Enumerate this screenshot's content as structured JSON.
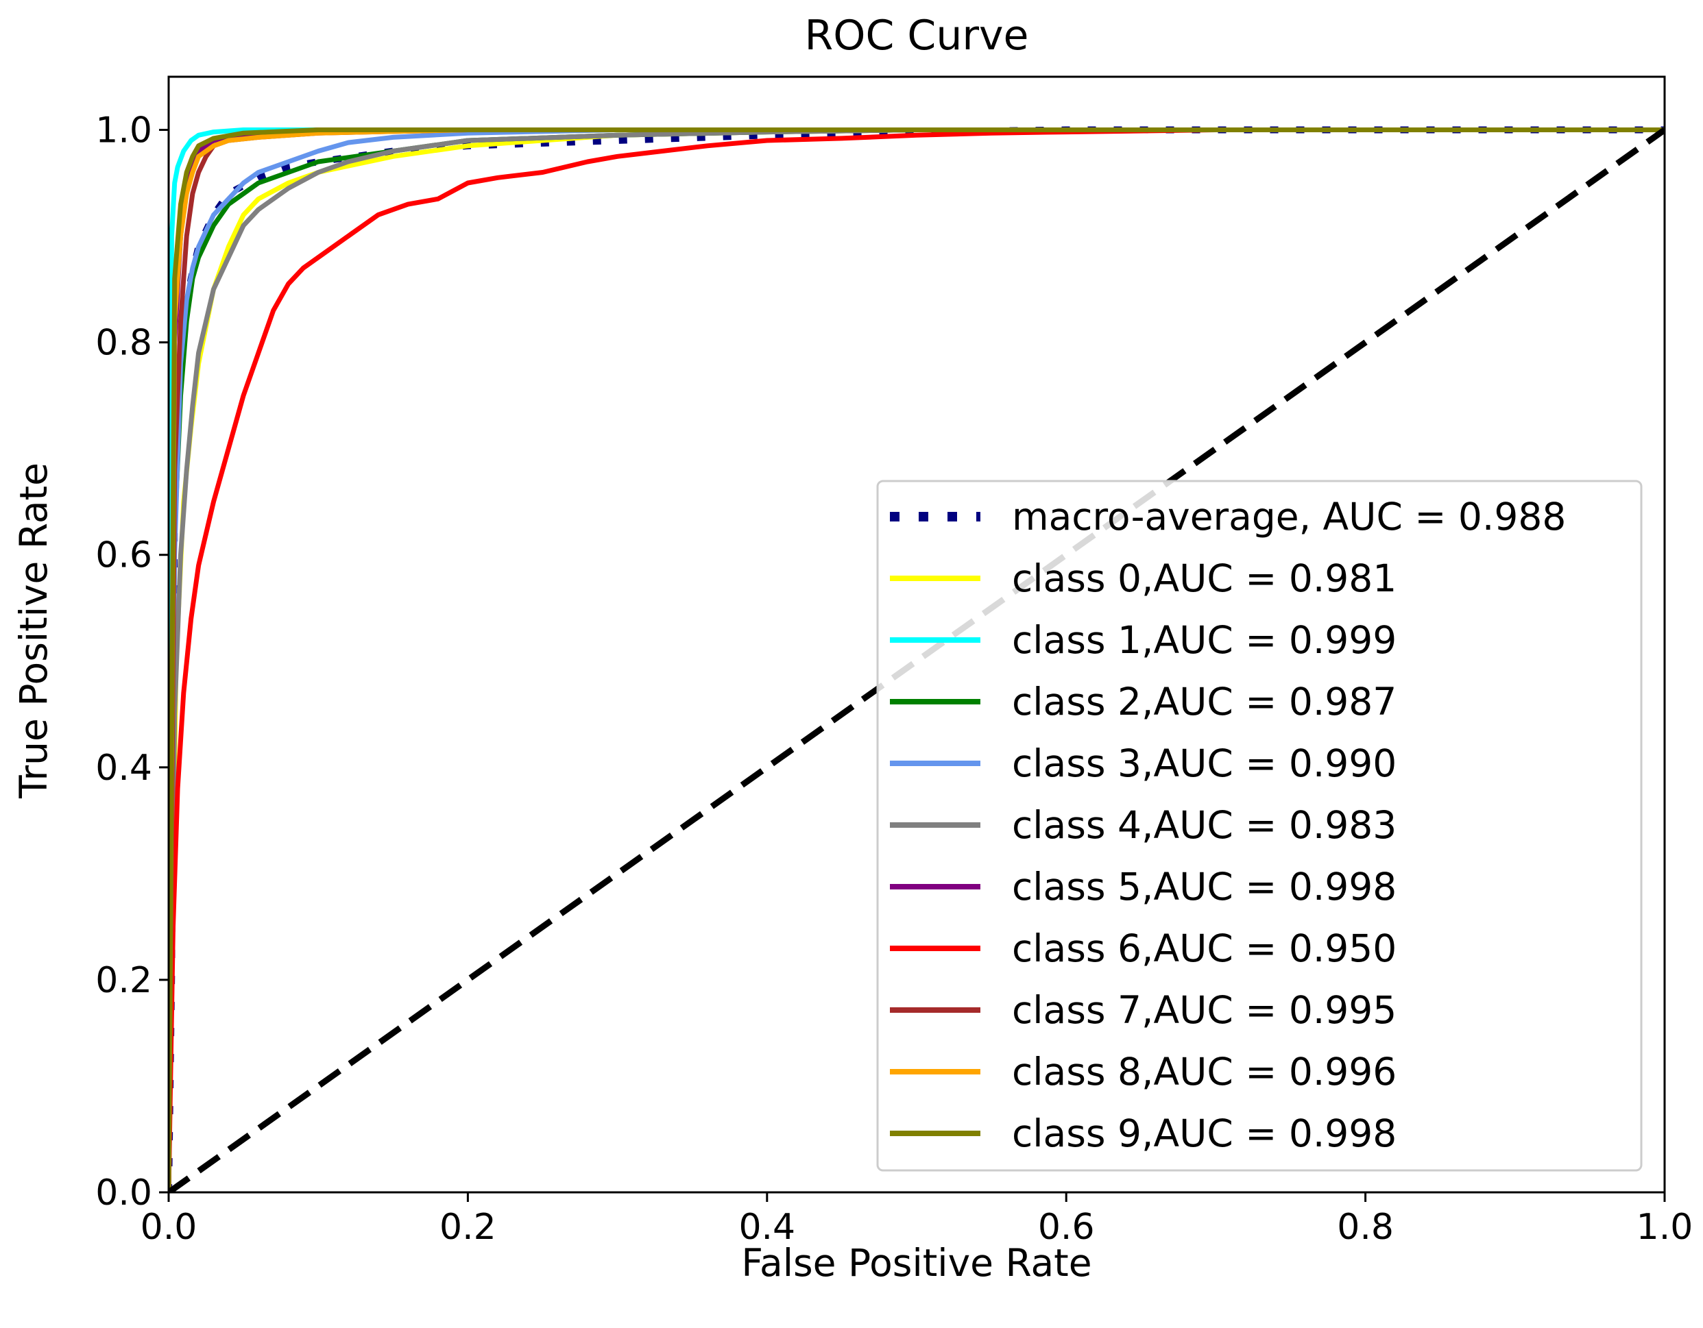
{
  "chart_data": {
    "type": "line",
    "title": "ROC Curve",
    "xlabel": "False Positive Rate",
    "ylabel": "True Positive Rate",
    "xlim": [
      0.0,
      1.0
    ],
    "ylim": [
      0.0,
      1.05
    ],
    "xticks": [
      "0.0",
      "0.2",
      "0.4",
      "0.6",
      "0.8",
      "1.0"
    ],
    "yticks": [
      "0.0",
      "0.2",
      "0.4",
      "0.6",
      "0.8",
      "1.0"
    ],
    "grid": false,
    "legend_position": "lower-right",
    "diagonal": {
      "x": [
        0,
        1
      ],
      "y": [
        0,
        1
      ],
      "color": "#000000",
      "style": "dashed"
    },
    "series": [
      {
        "name": "macro-average, AUC = 0.988",
        "color": "#000080",
        "style": "dotted",
        "x": [
          0,
          0.002,
          0.004,
          0.006,
          0.01,
          0.015,
          0.02,
          0.03,
          0.04,
          0.06,
          0.08,
          0.1,
          0.15,
          0.2,
          0.3,
          0.4,
          0.5,
          0.6,
          0.7,
          0.8,
          0.9,
          1.0
        ],
        "y": [
          0,
          0.21,
          0.67,
          0.75,
          0.82,
          0.86,
          0.89,
          0.92,
          0.94,
          0.955,
          0.965,
          0.97,
          0.98,
          0.985,
          0.99,
          0.995,
          0.998,
          1.0,
          1.0,
          1.0,
          1.0,
          1.0
        ]
      },
      {
        "name": "class 0,AUC = 0.981",
        "color": "#ffff00",
        "style": "solid",
        "x": [
          0,
          0.005,
          0.01,
          0.015,
          0.02,
          0.03,
          0.04,
          0.05,
          0.06,
          0.08,
          0.1,
          0.15,
          0.2,
          0.25,
          0.3,
          0.4,
          0.5,
          0.6,
          1.0
        ],
        "y": [
          0,
          0.5,
          0.65,
          0.72,
          0.78,
          0.85,
          0.89,
          0.92,
          0.935,
          0.95,
          0.96,
          0.975,
          0.985,
          0.99,
          0.995,
          0.998,
          1.0,
          1.0,
          1.0
        ]
      },
      {
        "name": "class 1,AUC = 0.999",
        "color": "#00ffff",
        "style": "solid",
        "x": [
          0,
          0.002,
          0.004,
          0.006,
          0.01,
          0.015,
          0.02,
          0.03,
          0.05,
          0.1,
          0.3,
          1.0
        ],
        "y": [
          0,
          0.9,
          0.95,
          0.965,
          0.98,
          0.99,
          0.995,
          0.998,
          1.0,
          1.0,
          1.0,
          1.0
        ]
      },
      {
        "name": "class 2,AUC = 0.987",
        "color": "#008000",
        "style": "solid",
        "x": [
          0,
          0.004,
          0.008,
          0.012,
          0.016,
          0.02,
          0.03,
          0.04,
          0.05,
          0.06,
          0.08,
          0.1,
          0.15,
          0.2,
          0.3,
          0.4,
          0.5,
          1.0
        ],
        "y": [
          0,
          0.62,
          0.75,
          0.82,
          0.86,
          0.88,
          0.91,
          0.93,
          0.94,
          0.95,
          0.96,
          0.97,
          0.98,
          0.99,
          0.995,
          0.998,
          1.0,
          1.0
        ]
      },
      {
        "name": "class 3,AUC = 0.990",
        "color": "#6495ed",
        "style": "solid",
        "x": [
          0,
          0.004,
          0.008,
          0.012,
          0.016,
          0.02,
          0.03,
          0.04,
          0.05,
          0.06,
          0.08,
          0.1,
          0.12,
          0.15,
          0.2,
          0.3,
          0.4,
          1.0
        ],
        "y": [
          0,
          0.6,
          0.78,
          0.84,
          0.87,
          0.89,
          0.92,
          0.935,
          0.95,
          0.96,
          0.97,
          0.98,
          0.988,
          0.993,
          0.997,
          1.0,
          1.0,
          1.0
        ]
      },
      {
        "name": "class 4,AUC = 0.983",
        "color": "#808080",
        "style": "solid",
        "x": [
          0,
          0.004,
          0.008,
          0.012,
          0.016,
          0.02,
          0.03,
          0.04,
          0.05,
          0.06,
          0.08,
          0.1,
          0.12,
          0.15,
          0.2,
          0.3,
          0.4,
          0.5,
          1.0
        ],
        "y": [
          0,
          0.45,
          0.6,
          0.68,
          0.74,
          0.79,
          0.85,
          0.88,
          0.91,
          0.925,
          0.945,
          0.96,
          0.97,
          0.98,
          0.99,
          0.995,
          0.998,
          1.0,
          1.0
        ]
      },
      {
        "name": "class 5,AUC = 0.998",
        "color": "#800080",
        "style": "solid",
        "x": [
          0,
          0.004,
          0.008,
          0.012,
          0.016,
          0.02,
          0.03,
          0.05,
          0.1,
          0.3,
          1.0
        ],
        "y": [
          0,
          0.8,
          0.9,
          0.95,
          0.97,
          0.98,
          0.99,
          0.995,
          1.0,
          1.0,
          1.0
        ]
      },
      {
        "name": "class 6,AUC = 0.950",
        "color": "#ff0000",
        "style": "solid",
        "x": [
          0,
          0.003,
          0.006,
          0.01,
          0.015,
          0.02,
          0.03,
          0.04,
          0.05,
          0.06,
          0.07,
          0.08,
          0.09,
          0.1,
          0.12,
          0.14,
          0.16,
          0.18,
          0.2,
          0.22,
          0.25,
          0.28,
          0.3,
          0.33,
          0.36,
          0.4,
          0.45,
          0.5,
          0.55,
          0.6,
          0.7,
          0.8,
          1.0
        ],
        "y": [
          0,
          0.25,
          0.38,
          0.47,
          0.54,
          0.59,
          0.65,
          0.7,
          0.75,
          0.79,
          0.83,
          0.855,
          0.87,
          0.88,
          0.9,
          0.92,
          0.93,
          0.935,
          0.95,
          0.955,
          0.96,
          0.97,
          0.975,
          0.98,
          0.985,
          0.99,
          0.992,
          0.995,
          0.997,
          0.998,
          1.0,
          1.0,
          1.0
        ]
      },
      {
        "name": "class 7,AUC = 0.995",
        "color": "#a52a2a",
        "style": "solid",
        "x": [
          0,
          0.004,
          0.008,
          0.012,
          0.016,
          0.02,
          0.025,
          0.03,
          0.04,
          0.06,
          0.1,
          0.2,
          0.5,
          1.0
        ],
        "y": [
          0,
          0.68,
          0.82,
          0.9,
          0.94,
          0.96,
          0.975,
          0.985,
          0.99,
          0.993,
          0.997,
          1.0,
          1.0,
          1.0
        ]
      },
      {
        "name": "class 8,AUC = 0.996",
        "color": "#ffa500",
        "style": "solid",
        "x": [
          0,
          0.004,
          0.008,
          0.012,
          0.016,
          0.02,
          0.03,
          0.04,
          0.06,
          0.1,
          0.2,
          0.5,
          1.0
        ],
        "y": [
          0,
          0.82,
          0.9,
          0.94,
          0.96,
          0.975,
          0.985,
          0.99,
          0.993,
          0.997,
          1.0,
          1.0,
          1.0
        ]
      },
      {
        "name": "class 9,AUC = 0.998",
        "color": "#808000",
        "style": "solid",
        "x": [
          0,
          0.004,
          0.008,
          0.012,
          0.016,
          0.02,
          0.03,
          0.05,
          0.1,
          0.3,
          1.0
        ],
        "y": [
          0,
          0.86,
          0.93,
          0.96,
          0.975,
          0.985,
          0.992,
          0.997,
          1.0,
          1.0,
          1.0
        ]
      }
    ]
  }
}
